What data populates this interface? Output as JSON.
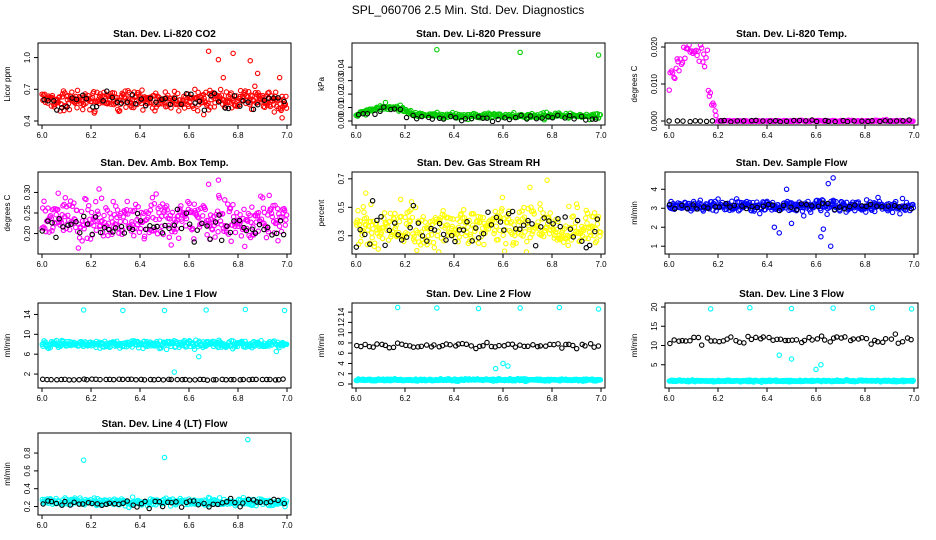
{
  "figure_title": "SPL_060706  2.5 Min. Std. Dev. Diagnostics",
  "colors": {
    "red": "#ff0000",
    "green": "#00cc00",
    "magenta": "#ff00ff",
    "yellow": "#ffff00",
    "blue": "#0000ff",
    "cyan": "#00ffff",
    "black": "#000000"
  },
  "chart_data": [
    {
      "id": "co2",
      "type": "scatter",
      "title": "Stan. Dev. Li-820 CO2",
      "ylabel": "Licor ppm",
      "xlim": [
        6.0,
        7.0
      ],
      "ylim": [
        0.4,
        1.1
      ],
      "xticks": [
        6.0,
        6.2,
        6.4,
        6.6,
        6.8,
        7.0
      ],
      "xtick_labels": [
        "6.0",
        "6.2",
        "6.4",
        "6.6",
        "6.8",
        "7.0"
      ],
      "yticks": [
        0.4,
        0.7,
        1.0
      ],
      "ytick_labels": [
        "0.4",
        "0.7",
        "1.0"
      ],
      "series": [
        {
          "name": "primary",
          "color": "#ff0000",
          "base": 0.6,
          "spread": 0.05,
          "n": 380,
          "outliers": [
            [
              6.68,
              1.06
            ],
            [
              6.72,
              0.98
            ],
            [
              6.74,
              0.81
            ],
            [
              6.78,
              1.04
            ],
            [
              6.85,
              0.97
            ],
            [
              6.97,
              0.81
            ],
            [
              6.98,
              0.43
            ],
            [
              6.66,
              0.46
            ],
            [
              6.88,
              0.85
            ]
          ]
        },
        {
          "name": "secondary",
          "color": "#000000",
          "base": 0.59,
          "spread": 0.04,
          "n": 50,
          "outliers": []
        }
      ]
    },
    {
      "id": "pressure",
      "type": "scatter",
      "title": "Stan. Dev. Li-820 Pressure",
      "ylabel": "kPa",
      "xlim": [
        6.0,
        7.0
      ],
      "ylim": [
        0.0,
        0.055
      ],
      "xticks": [
        6.0,
        6.2,
        6.4,
        6.6,
        6.8,
        7.0
      ],
      "xtick_labels": [
        "6.0",
        "6.2",
        "6.4",
        "6.6",
        "6.8",
        "7.0"
      ],
      "yticks": [
        0.0,
        0.01,
        0.02,
        0.03,
        0.04
      ],
      "ytick_labels": [
        "0.00",
        "0.01",
        "0.02",
        "0.03",
        "0.04"
      ],
      "series": [
        {
          "name": "primary",
          "color": "#00cc00",
          "base": 0.004,
          "spread": 0.001,
          "n": 300,
          "outliers": [
            [
              6.33,
              0.053
            ],
            [
              6.67,
              0.051
            ],
            [
              6.99,
              0.049
            ]
          ]
        },
        {
          "name": "secondary",
          "color": "#000000",
          "base": 0.002,
          "spread": 0.001,
          "n": 45,
          "outliers": []
        }
      ]
    },
    {
      "id": "temp",
      "type": "scatter",
      "title": "Stan. Dev. Li-820 Temp.",
      "ylabel": "degrees C",
      "xlim": [
        6.0,
        7.0
      ],
      "ylim": [
        0.0,
        0.02
      ],
      "xticks": [
        6.0,
        6.2,
        6.4,
        6.6,
        6.8,
        7.0
      ],
      "xtick_labels": [
        "6.0",
        "6.2",
        "6.4",
        "6.6",
        "6.8",
        "7.0"
      ],
      "yticks": [
        0.0,
        0.01,
        0.02
      ],
      "ytick_labels": [
        "0.000",
        "0.010",
        "0.020"
      ],
      "series": [
        {
          "name": "primary",
          "color": "#ff00ff",
          "base": 0.0,
          "spread": 0.0001,
          "n": 220,
          "outliers": []
        },
        {
          "name": "secondary",
          "color": "#000000",
          "base": 0.0,
          "spread": 0.0001,
          "n": 40,
          "outliers": []
        }
      ]
    },
    {
      "id": "boxtemp",
      "type": "scatter",
      "title": "Stan. Dev. Amb. Box Temp.",
      "ylabel": "degrees C",
      "xlim": [
        6.0,
        7.0
      ],
      "ylim": [
        0.16,
        0.34
      ],
      "xticks": [
        6.0,
        6.2,
        6.4,
        6.6,
        6.8,
        7.0
      ],
      "xtick_labels": [
        "6.0",
        "6.2",
        "6.4",
        "6.6",
        "6.8",
        "7.0"
      ],
      "yticks": [
        0.2,
        0.25,
        0.3
      ],
      "ytick_labels": [
        "0.20",
        "0.25",
        "0.30"
      ],
      "series": [
        {
          "name": "primary",
          "color": "#ff00ff",
          "base": 0.235,
          "spread": 0.025,
          "n": 380,
          "outliers": [
            [
              6.72,
              0.33
            ],
            [
              6.68,
              0.32
            ]
          ]
        },
        {
          "name": "secondary",
          "color": "#000000",
          "base": 0.22,
          "spread": 0.018,
          "n": 60,
          "outliers": []
        }
      ]
    },
    {
      "id": "rh",
      "type": "scatter",
      "title": "Stan. Dev. Gas Stream RH",
      "ylabel": "percent",
      "xlim": [
        6.0,
        7.0
      ],
      "ylim": [
        0.2,
        0.72
      ],
      "xticks": [
        6.0,
        6.2,
        6.4,
        6.6,
        6.8,
        7.0
      ],
      "xtick_labels": [
        "6.0",
        "6.2",
        "6.4",
        "6.6",
        "6.8",
        "7.0"
      ],
      "yticks": [
        0.3,
        0.5,
        0.7
      ],
      "ytick_labels": [
        "0.3",
        "0.5",
        "0.7"
      ],
      "series": [
        {
          "name": "primary",
          "color": "#ffff00",
          "base": 0.36,
          "spread": 0.07,
          "n": 380,
          "outliers": [
            [
              6.78,
              0.69
            ],
            [
              6.71,
              0.64
            ],
            [
              6.04,
              0.6
            ]
          ]
        },
        {
          "name": "secondary",
          "color": "#000000",
          "base": 0.34,
          "spread": 0.07,
          "n": 60,
          "outliers": []
        }
      ]
    },
    {
      "id": "sampleflow",
      "type": "scatter",
      "title": "Stan. Dev. Sample Flow",
      "ylabel": "ml/min",
      "xlim": [
        6.0,
        7.0
      ],
      "ylim": [
        0.8,
        4.7
      ],
      "xticks": [
        6.0,
        6.2,
        6.4,
        6.6,
        6.8,
        7.0
      ],
      "xtick_labels": [
        "6.0",
        "6.2",
        "6.4",
        "6.6",
        "6.8",
        "7.0"
      ],
      "yticks": [
        1,
        2,
        3,
        4
      ],
      "ytick_labels": [
        "1",
        "2",
        "3",
        "4"
      ],
      "series": [
        {
          "name": "primary",
          "color": "#0000ff",
          "base": 3.1,
          "spread": 0.15,
          "n": 360,
          "outliers": [
            [
              6.67,
              4.6
            ],
            [
              6.65,
              4.3
            ],
            [
              6.66,
              1.0
            ],
            [
              6.62,
              1.5
            ],
            [
              6.45,
              1.7
            ],
            [
              6.43,
              2.0
            ],
            [
              6.48,
              4.0
            ],
            [
              6.5,
              2.2
            ],
            [
              6.63,
              1.9
            ],
            [
              6.55,
              2.6
            ]
          ]
        },
        {
          "name": "secondary",
          "color": "#000000",
          "base": 3.1,
          "spread": 0.1,
          "n": 45,
          "outliers": []
        }
      ]
    },
    {
      "id": "line1",
      "type": "scatter",
      "title": "Stan. Dev. Line 1 Flow",
      "ylabel": "ml/min",
      "xlim": [
        6.0,
        7.0
      ],
      "ylim": [
        0.0,
        15.5
      ],
      "xticks": [
        6.0,
        6.2,
        6.4,
        6.6,
        6.8,
        7.0
      ],
      "xtick_labels": [
        "6.0",
        "6.2",
        "6.4",
        "6.6",
        "6.8",
        "7.0"
      ],
      "yticks": [
        2,
        6,
        10,
        14
      ],
      "ytick_labels": [
        "2",
        "6",
        "10",
        "14"
      ],
      "series": [
        {
          "name": "primary",
          "color": "#00ffff",
          "base": 8.0,
          "spread": 0.4,
          "n": 360,
          "outliers": [
            [
              6.17,
              14.9
            ],
            [
              6.33,
              14.8
            ],
            [
              6.5,
              14.8
            ],
            [
              6.67,
              14.9
            ],
            [
              6.83,
              15.0
            ],
            [
              6.99,
              14.8
            ],
            [
              6.54,
              2.4
            ],
            [
              6.64,
              5.5
            ]
          ]
        },
        {
          "name": "secondary",
          "color": "#000000",
          "base": 0.9,
          "spread": 0.05,
          "n": 55,
          "outliers": []
        }
      ]
    },
    {
      "id": "line2",
      "type": "scatter",
      "title": "Stan. Dev. Line 2 Flow",
      "ylabel": "ml/min",
      "xlim": [
        6.0,
        7.0
      ],
      "ylim": [
        0.0,
        15.0
      ],
      "xticks": [
        6.0,
        6.2,
        6.4,
        6.6,
        6.8,
        7.0
      ],
      "xtick_labels": [
        "6.0",
        "6.2",
        "6.4",
        "6.6",
        "6.8",
        "7.0"
      ],
      "yticks": [
        0,
        2,
        4,
        6,
        8,
        10,
        12,
        14
      ],
      "ytick_labels": [
        "0",
        "2",
        "4",
        "6",
        "8",
        "10",
        "12",
        "14"
      ],
      "series": [
        {
          "name": "primary",
          "color": "#00ffff",
          "base": 0.8,
          "spread": 0.1,
          "n": 330,
          "outliers": [
            [
              6.17,
              14.9
            ],
            [
              6.33,
              14.8
            ],
            [
              6.5,
              14.7
            ],
            [
              6.67,
              14.8
            ],
            [
              6.83,
              14.9
            ],
            [
              6.99,
              14.6
            ],
            [
              6.57,
              3.0
            ],
            [
              6.6,
              4.0
            ],
            [
              6.62,
              3.5
            ]
          ]
        },
        {
          "name": "secondary",
          "color": "#000000",
          "base": 7.5,
          "spread": 0.3,
          "n": 60,
          "outliers": []
        }
      ]
    },
    {
      "id": "line3",
      "type": "scatter",
      "title": "Stan. Dev. Line 3 Flow",
      "ylabel": "ml/min",
      "xlim": [
        6.0,
        7.0
      ],
      "ylim": [
        0.0,
        20.0
      ],
      "xticks": [
        6.0,
        6.2,
        6.4,
        6.6,
        6.8,
        7.0
      ],
      "xtick_labels": [
        "6.0",
        "6.2",
        "6.4",
        "6.6",
        "6.8",
        "7.0"
      ],
      "yticks": [
        5,
        10,
        15,
        20
      ],
      "ytick_labels": [
        "5",
        "10",
        "15",
        "20"
      ],
      "series": [
        {
          "name": "primary",
          "color": "#00ffff",
          "base": 0.8,
          "spread": 0.1,
          "n": 330,
          "outliers": [
            [
              6.17,
              19.5
            ],
            [
              6.33,
              19.8
            ],
            [
              6.5,
              19.6
            ],
            [
              6.67,
              19.7
            ],
            [
              6.83,
              19.8
            ],
            [
              6.99,
              19.5
            ],
            [
              6.45,
              7.5
            ],
            [
              6.5,
              6.5
            ],
            [
              6.62,
              5.0
            ],
            [
              6.6,
              3.8
            ]
          ]
        },
        {
          "name": "secondary",
          "color": "#000000",
          "base": 11.5,
          "spread": 0.5,
          "n": 60,
          "outliers": []
        }
      ]
    },
    {
      "id": "line4",
      "type": "scatter",
      "title": "Stan. Dev. Line 4 (LT) Flow",
      "ylabel": "ml/min",
      "xlim": [
        6.0,
        7.0
      ],
      "ylim": [
        0.15,
        0.98
      ],
      "xticks": [
        6.0,
        6.2,
        6.4,
        6.6,
        6.8,
        7.0
      ],
      "xtick_labels": [
        "6.0",
        "6.2",
        "6.4",
        "6.6",
        "6.8",
        "7.0"
      ],
      "yticks": [
        0.2,
        0.4,
        0.6,
        0.8
      ],
      "ytick_labels": [
        "0.2",
        "0.4",
        "0.6",
        "0.8"
      ],
      "series": [
        {
          "name": "primary",
          "color": "#00ffff",
          "base": 0.25,
          "spread": 0.02,
          "n": 330,
          "outliers": [
            [
              6.17,
              0.72
            ],
            [
              6.5,
              0.75
            ],
            [
              6.84,
              0.95
            ]
          ]
        },
        {
          "name": "secondary",
          "color": "#000000",
          "base": 0.24,
          "spread": 0.02,
          "n": 55,
          "outliers": []
        }
      ]
    }
  ]
}
